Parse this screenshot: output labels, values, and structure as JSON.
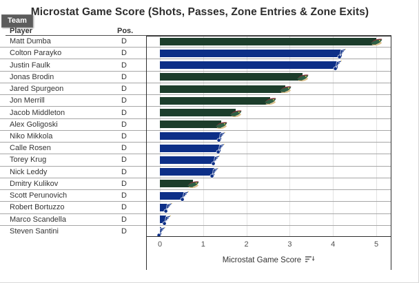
{
  "title": "Microstat Game Score (Shots, Passes, Zone Entries & Zone Exits)",
  "team_badge": {
    "label": "Team"
  },
  "table": {
    "player_header": "Player",
    "pos_header": "Pos."
  },
  "axis": {
    "label": "Microstat Game Score",
    "tick_labels": [
      "0",
      "1",
      "2",
      "3",
      "4",
      "5"
    ],
    "sort_icon": "sort-descending-icon"
  },
  "teams": {
    "MIN": {
      "name": "Minnesota Wild",
      "color": "#1c3d2b",
      "logo": "minnesota-wild-logo-icon"
    },
    "STL": {
      "name": "St. Louis Blues",
      "color": "#0d2f87",
      "logo": "st-louis-blues-logo-icon"
    }
  },
  "chart_data": {
    "type": "bar",
    "orientation": "horizontal",
    "title": "Microstat Game Score (Shots, Passes, Zone Entries & Zone Exits)",
    "xlabel": "Microstat Game Score",
    "ylabel": "Player",
    "xlim": [
      0,
      5
    ],
    "x_ticks": [
      0,
      1,
      2,
      3,
      4,
      5
    ],
    "grid": true,
    "sorted": "descending",
    "categories": [
      "Matt Dumba",
      "Colton Parayko",
      "Justin Faulk",
      "Jonas Brodin",
      "Jared Spurgeon",
      "Jon Merrill",
      "Jacob Middleton",
      "Alex Goligoski",
      "Niko Mikkola",
      "Calle Rosen",
      "Torey Krug",
      "Nick Leddy",
      "Dmitry Kulikov",
      "Scott Perunovich",
      "Robert Bortuzzo",
      "Marco Scandella",
      "Steven Santini"
    ],
    "positions": [
      "D",
      "D",
      "D",
      "D",
      "D",
      "D",
      "D",
      "D",
      "D",
      "D",
      "D",
      "D",
      "D",
      "D",
      "D",
      "D",
      "D"
    ],
    "player_teams": [
      "MIN",
      "STL",
      "STL",
      "MIN",
      "MIN",
      "MIN",
      "MIN",
      "MIN",
      "STL",
      "STL",
      "STL",
      "STL",
      "MIN",
      "STL",
      "STL",
      "STL",
      "STL"
    ],
    "values": [
      5.0,
      4.2,
      4.1,
      3.3,
      2.9,
      2.55,
      1.75,
      1.42,
      1.41,
      1.4,
      1.28,
      1.25,
      0.76,
      0.56,
      0.18,
      0.15,
      0.03
    ]
  }
}
